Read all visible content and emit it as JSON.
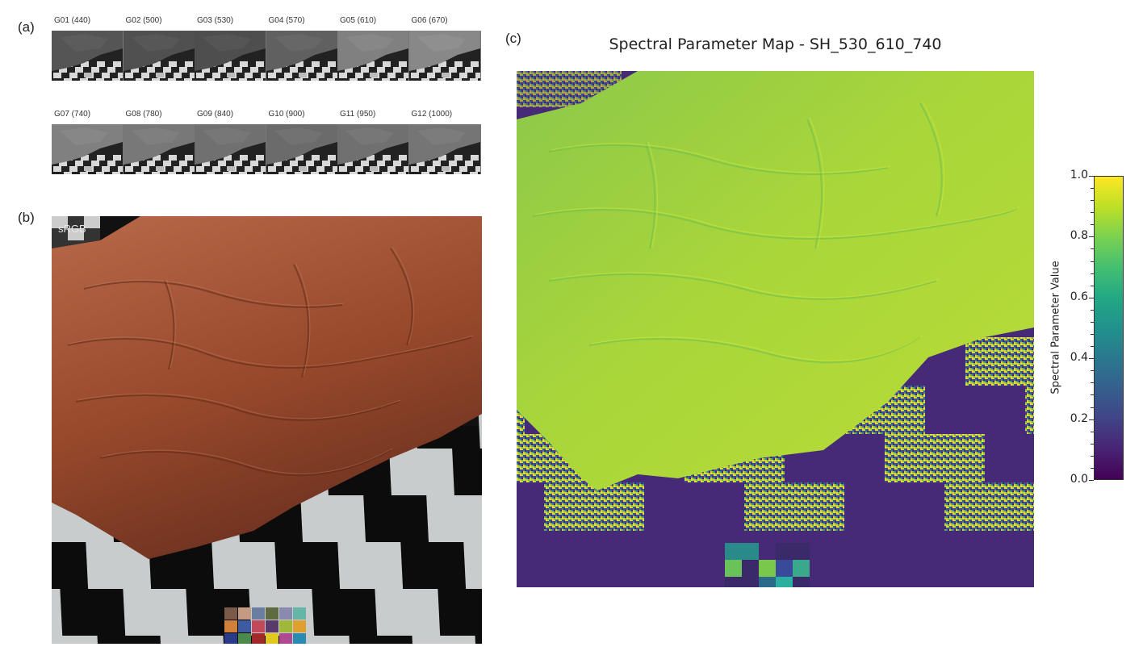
{
  "figure": {
    "panel_labels": {
      "a": "(a)",
      "b": "(b)",
      "c": "(c)"
    }
  },
  "panel_a": {
    "thumbnails": [
      {
        "label": "G01 (440)",
        "brightness": 0.28
      },
      {
        "label": "G02 (500)",
        "brightness": 0.25
      },
      {
        "label": "G03 (530)",
        "brightness": 0.24
      },
      {
        "label": "G04 (570)",
        "brightness": 0.35
      },
      {
        "label": "G05 (610)",
        "brightness": 0.55
      },
      {
        "label": "G06 (670)",
        "brightness": 0.6
      },
      {
        "label": "G07 (740)",
        "brightness": 0.55
      },
      {
        "label": "G08 (780)",
        "brightness": 0.5
      },
      {
        "label": "G09 (840)",
        "brightness": 0.45
      },
      {
        "label": "G10 (900)",
        "brightness": 0.42
      },
      {
        "label": "G11 (950)",
        "brightness": 0.45
      },
      {
        "label": "G12 (1000)",
        "brightness": 0.48
      }
    ]
  },
  "panel_b": {
    "tag": "sRGB",
    "colors": {
      "terrain": "#9a4a2c",
      "terrain_dark": "#6e3220",
      "terrain_light": "#b8694a",
      "check_light": "#c8cccc",
      "check_dark": "#0c0c0c"
    }
  },
  "panel_c": {
    "title": "Spectral Parameter Map - SH_530_610_740",
    "colorbar": {
      "label": "Spectral Parameter Value",
      "ticks": [
        "1.0",
        "0.8",
        "0.6",
        "0.4",
        "0.2",
        "0.0"
      ],
      "range": [
        0.0,
        1.0
      ]
    },
    "colors": {
      "terrain": "#a9d63a",
      "terrain_alt": "#8cc84a",
      "dark_square": "#462a78",
      "background": "#3b1a5e"
    }
  }
}
